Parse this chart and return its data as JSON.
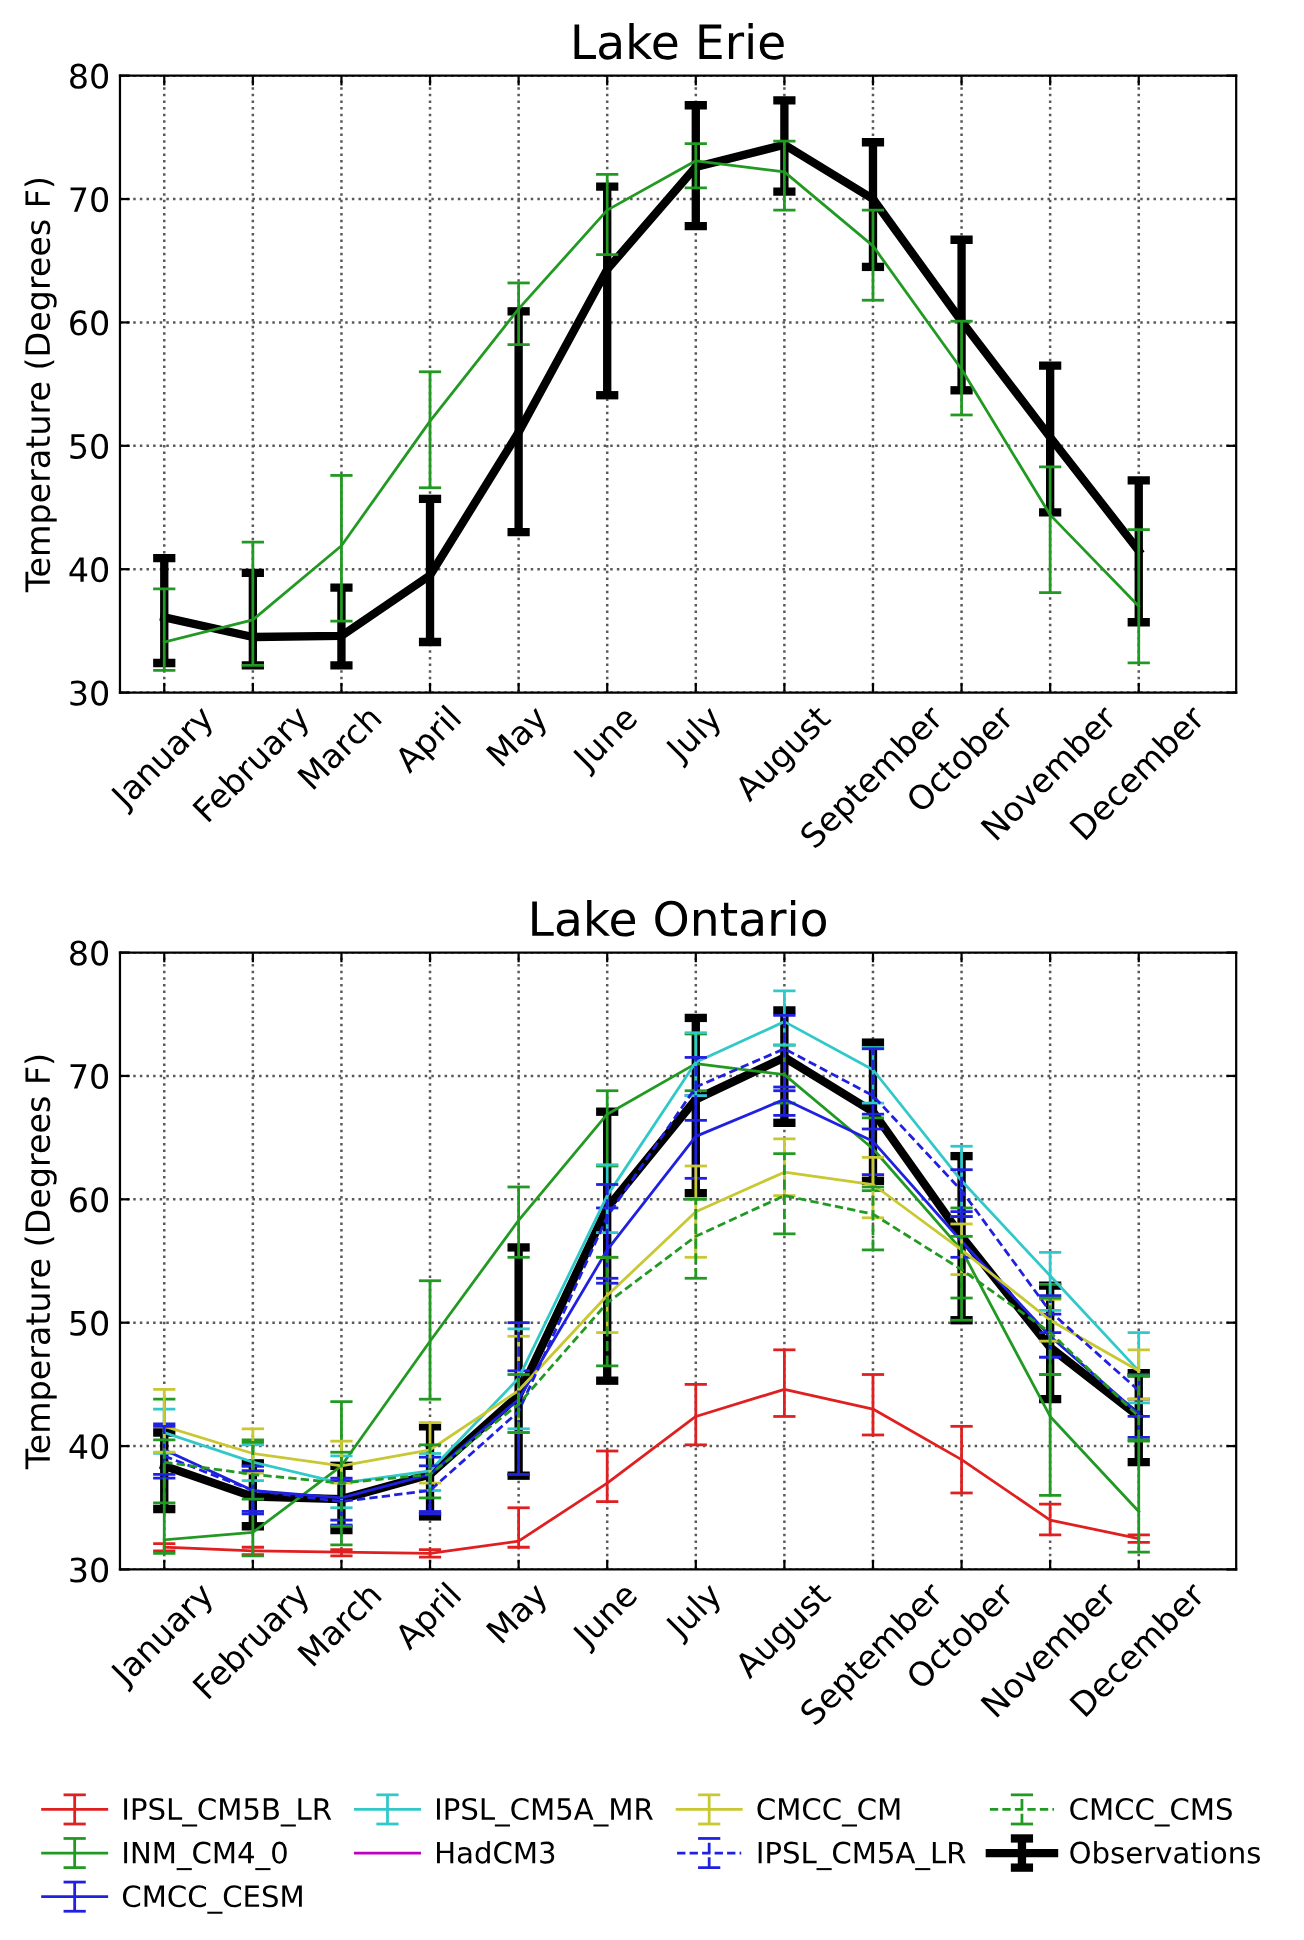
{
  "chart_data": [
    {
      "type": "line",
      "title": "Lake Erie",
      "ylabel": "Temperature (Degrees F)",
      "categories": [
        "January",
        "February",
        "March",
        "April",
        "May",
        "June",
        "July",
        "August",
        "September",
        "October",
        "November",
        "December"
      ],
      "ylim": [
        30,
        80
      ],
      "yticks": [
        30,
        40,
        50,
        60,
        70,
        80
      ],
      "grid": true,
      "series": [
        {
          "color": "#229922",
          "line_style": "solid",
          "values": [
            34.1,
            35.9,
            41.9,
            52.0,
            61.1,
            69.1,
            73.1,
            72.2,
            66.2,
            56.2,
            44.4,
            37.0
          ],
          "errors": [
            [
              31.8,
              38.4
            ],
            [
              32.2,
              42.2
            ],
            [
              35.8,
              47.6
            ],
            [
              46.6,
              56.0
            ],
            [
              58.2,
              63.2
            ],
            [
              65.5,
              72.0
            ],
            [
              70.9,
              74.5
            ],
            [
              69.1,
              74.7
            ],
            [
              61.8,
              69.1
            ],
            [
              52.5,
              60.1
            ],
            [
              38.1,
              48.3
            ],
            [
              32.4,
              43.2
            ]
          ]
        },
        {
          "color": "#000000",
          "line_style": "solid",
          "values": [
            36.1,
            34.5,
            34.6,
            39.5,
            51.1,
            64.3,
            72.6,
            74.4,
            70.0,
            60.1,
            50.7,
            41.5
          ],
          "errors": [
            [
              32.4,
              40.9
            ],
            [
              32.2,
              39.7
            ],
            [
              32.2,
              38.5
            ],
            [
              34.1,
              45.7
            ],
            [
              43.0,
              60.9
            ],
            [
              54.1,
              71.0
            ],
            [
              67.8,
              77.6
            ],
            [
              70.6,
              78.0
            ],
            [
              64.5,
              74.6
            ],
            [
              54.5,
              66.7
            ],
            [
              44.6,
              56.5
            ],
            [
              35.7,
              47.2
            ]
          ]
        }
      ]
    },
    {
      "type": "line",
      "title": "Lake Ontario",
      "ylabel": "Temperature (Degrees F)",
      "categories": [
        "January",
        "February",
        "March",
        "April",
        "May",
        "June",
        "July",
        "August",
        "September",
        "October",
        "November",
        "December"
      ],
      "ylim": [
        30,
        80
      ],
      "yticks": [
        30,
        40,
        50,
        60,
        70,
        80
      ],
      "grid": true,
      "legend": "bottom",
      "series": [
        {
          "name": "IPSL_CM5B_LR",
          "color": "#e02020",
          "line_style": "solid",
          "values": [
            31.8,
            31.5,
            31.4,
            31.3,
            32.3,
            37.0,
            42.4,
            44.6,
            43.0,
            38.9,
            34.0,
            32.5
          ],
          "errors": [
            [
              31.5,
              32.1
            ],
            [
              31.2,
              31.8
            ],
            [
              31.1,
              31.6
            ],
            [
              31.0,
              31.6
            ],
            [
              31.8,
              35.0
            ],
            [
              35.5,
              39.6
            ],
            [
              40.1,
              45.0
            ],
            [
              42.4,
              47.8
            ],
            [
              40.9,
              45.8
            ],
            [
              36.2,
              41.6
            ],
            [
              32.8,
              35.3
            ],
            [
              32.2,
              32.8
            ]
          ]
        },
        {
          "name": "INM_CM4_0",
          "color": "#229922",
          "line_style": "solid",
          "values": [
            32.4,
            33.0,
            38.4,
            48.5,
            58.3,
            66.9,
            71.0,
            70.1,
            64.1,
            55.9,
            42.4,
            34.7
          ],
          "errors": [
            [
              31.3,
              43.8
            ],
            [
              31.1,
              40.5
            ],
            [
              32.0,
              43.6
            ],
            [
              43.8,
              53.4
            ],
            [
              55.3,
              61.0
            ],
            [
              62.7,
              68.8
            ],
            [
              68.8,
              73.4
            ],
            [
              67.8,
              72.5
            ],
            [
              60.7,
              66.6
            ],
            [
              50.2,
              59.3
            ],
            [
              36.0,
              53.1
            ],
            [
              31.4,
              40.4
            ]
          ]
        },
        {
          "name": "CMCC_CESM",
          "color": "#2020e0",
          "line_style": "solid",
          "values": [
            39.7,
            36.4,
            35.8,
            37.7,
            43.8,
            55.9,
            65.1,
            68.1,
            64.7,
            56.6,
            48.9,
            42.6
          ],
          "errors": [
            [
              37.7,
              41.8
            ],
            [
              34.7,
              38.4
            ],
            [
              34.0,
              37.4
            ],
            [
              34.7,
              39.1
            ],
            [
              37.7,
              46.1
            ],
            [
              53.6,
              59.3
            ],
            [
              61.7,
              68.4
            ],
            [
              66.8,
              68.8
            ],
            [
              62.0,
              66.9
            ],
            [
              55.3,
              59.0
            ],
            [
              47.2,
              50.7
            ],
            [
              40.7,
              43.8
            ]
          ]
        },
        {
          "name": "IPSL_CM5A_MR",
          "color": "#30c8c8",
          "line_style": "solid",
          "values": [
            41.1,
            38.7,
            37.0,
            38.0,
            45.5,
            60.3,
            71.1,
            74.4,
            70.5,
            61.5,
            53.8,
            46.1
          ],
          "errors": [
            [
              39.4,
              43.0
            ],
            [
              37.2,
              40.1
            ],
            [
              35.0,
              39.2
            ],
            [
              36.4,
              39.4
            ],
            [
              41.4,
              49.5
            ],
            [
              57.3,
              62.8
            ],
            [
              68.4,
              73.5
            ],
            [
              72.5,
              76.9
            ],
            [
              67.8,
              72.3
            ],
            [
              58.6,
              64.3
            ],
            [
              51.0,
              55.7
            ],
            [
              43.5,
              49.2
            ]
          ]
        },
        {
          "name": "HadCM3",
          "color": "#c000c0",
          "line_style": "solid",
          "values": [
            null,
            null,
            null,
            null,
            null,
            null,
            null,
            null,
            null,
            null,
            null,
            null
          ]
        },
        {
          "name": "CMCC_CM",
          "color": "#c8c832",
          "line_style": "solid",
          "values": [
            41.6,
            39.4,
            38.4,
            39.7,
            44.5,
            52.2,
            59.0,
            62.2,
            61.2,
            55.9,
            50.2,
            46.1
          ],
          "errors": [
            [
              39.5,
              44.6
            ],
            [
              37.8,
              41.4
            ],
            [
              37.0,
              40.4
            ],
            [
              37.0,
              41.9
            ],
            [
              41.1,
              48.9
            ],
            [
              49.2,
              55.3
            ],
            [
              55.3,
              62.7
            ],
            [
              60.3,
              64.9
            ],
            [
              58.5,
              63.4
            ],
            [
              53.9,
              58.0
            ],
            [
              48.5,
              51.9
            ],
            [
              43.8,
              47.8
            ]
          ]
        },
        {
          "name": "IPSL_CM5A_LR",
          "color": "#2020e0",
          "line_style": "dashed",
          "values": [
            39.2,
            36.4,
            35.5,
            36.4,
            42.8,
            58.6,
            69.1,
            72.2,
            68.4,
            60.7,
            50.9,
            44.5
          ],
          "errors": [
            [
              37.4,
              41.6
            ],
            [
              34.5,
              38.0
            ],
            [
              33.6,
              37.2
            ],
            [
              34.5,
              38.4
            ],
            [
              37.7,
              50.0
            ],
            [
              53.2,
              61.2
            ],
            [
              66.4,
              71.5
            ],
            [
              69.1,
              74.9
            ],
            [
              65.7,
              72.2
            ],
            [
              58.6,
              62.4
            ],
            [
              49.2,
              52.2
            ],
            [
              42.4,
              45.8
            ]
          ]
        },
        {
          "name": "CMCC_CMS",
          "color": "#229922",
          "line_style": "dashed",
          "values": [
            38.7,
            37.7,
            37.0,
            37.7,
            43.4,
            51.6,
            57.0,
            60.3,
            58.8,
            54.3,
            49.2,
            42.4
          ],
          "errors": [
            [
              35.4,
              40.5
            ],
            [
              35.7,
              40.3
            ],
            [
              33.5,
              39.5
            ],
            [
              35.8,
              40.1
            ],
            [
              41.1,
              45.8
            ],
            [
              46.5,
              55.3
            ],
            [
              53.6,
              60.0
            ],
            [
              57.2,
              63.7
            ],
            [
              55.9,
              61.0
            ],
            [
              52.0,
              57.0
            ],
            [
              45.8,
              52.0
            ],
            [
              40.5,
              45.7
            ]
          ]
        },
        {
          "name": "Observations",
          "color": "#000000",
          "line_style": "solid",
          "values": [
            38.4,
            35.9,
            35.7,
            37.7,
            44.1,
            59.3,
            68.1,
            71.5,
            67.1,
            57.0,
            48.0,
            42.4
          ],
          "errors": [
            [
              34.9,
              41.1
            ],
            [
              33.5,
              38.6
            ],
            [
              33.2,
              38.4
            ],
            [
              34.3,
              41.6
            ],
            [
              37.6,
              56.1
            ],
            [
              45.3,
              67.1
            ],
            [
              60.5,
              74.7
            ],
            [
              66.2,
              75.3
            ],
            [
              61.5,
              72.7
            ],
            [
              50.2,
              63.5
            ],
            [
              43.8,
              53.0
            ],
            [
              38.7,
              45.9
            ]
          ]
        }
      ]
    }
  ]
}
